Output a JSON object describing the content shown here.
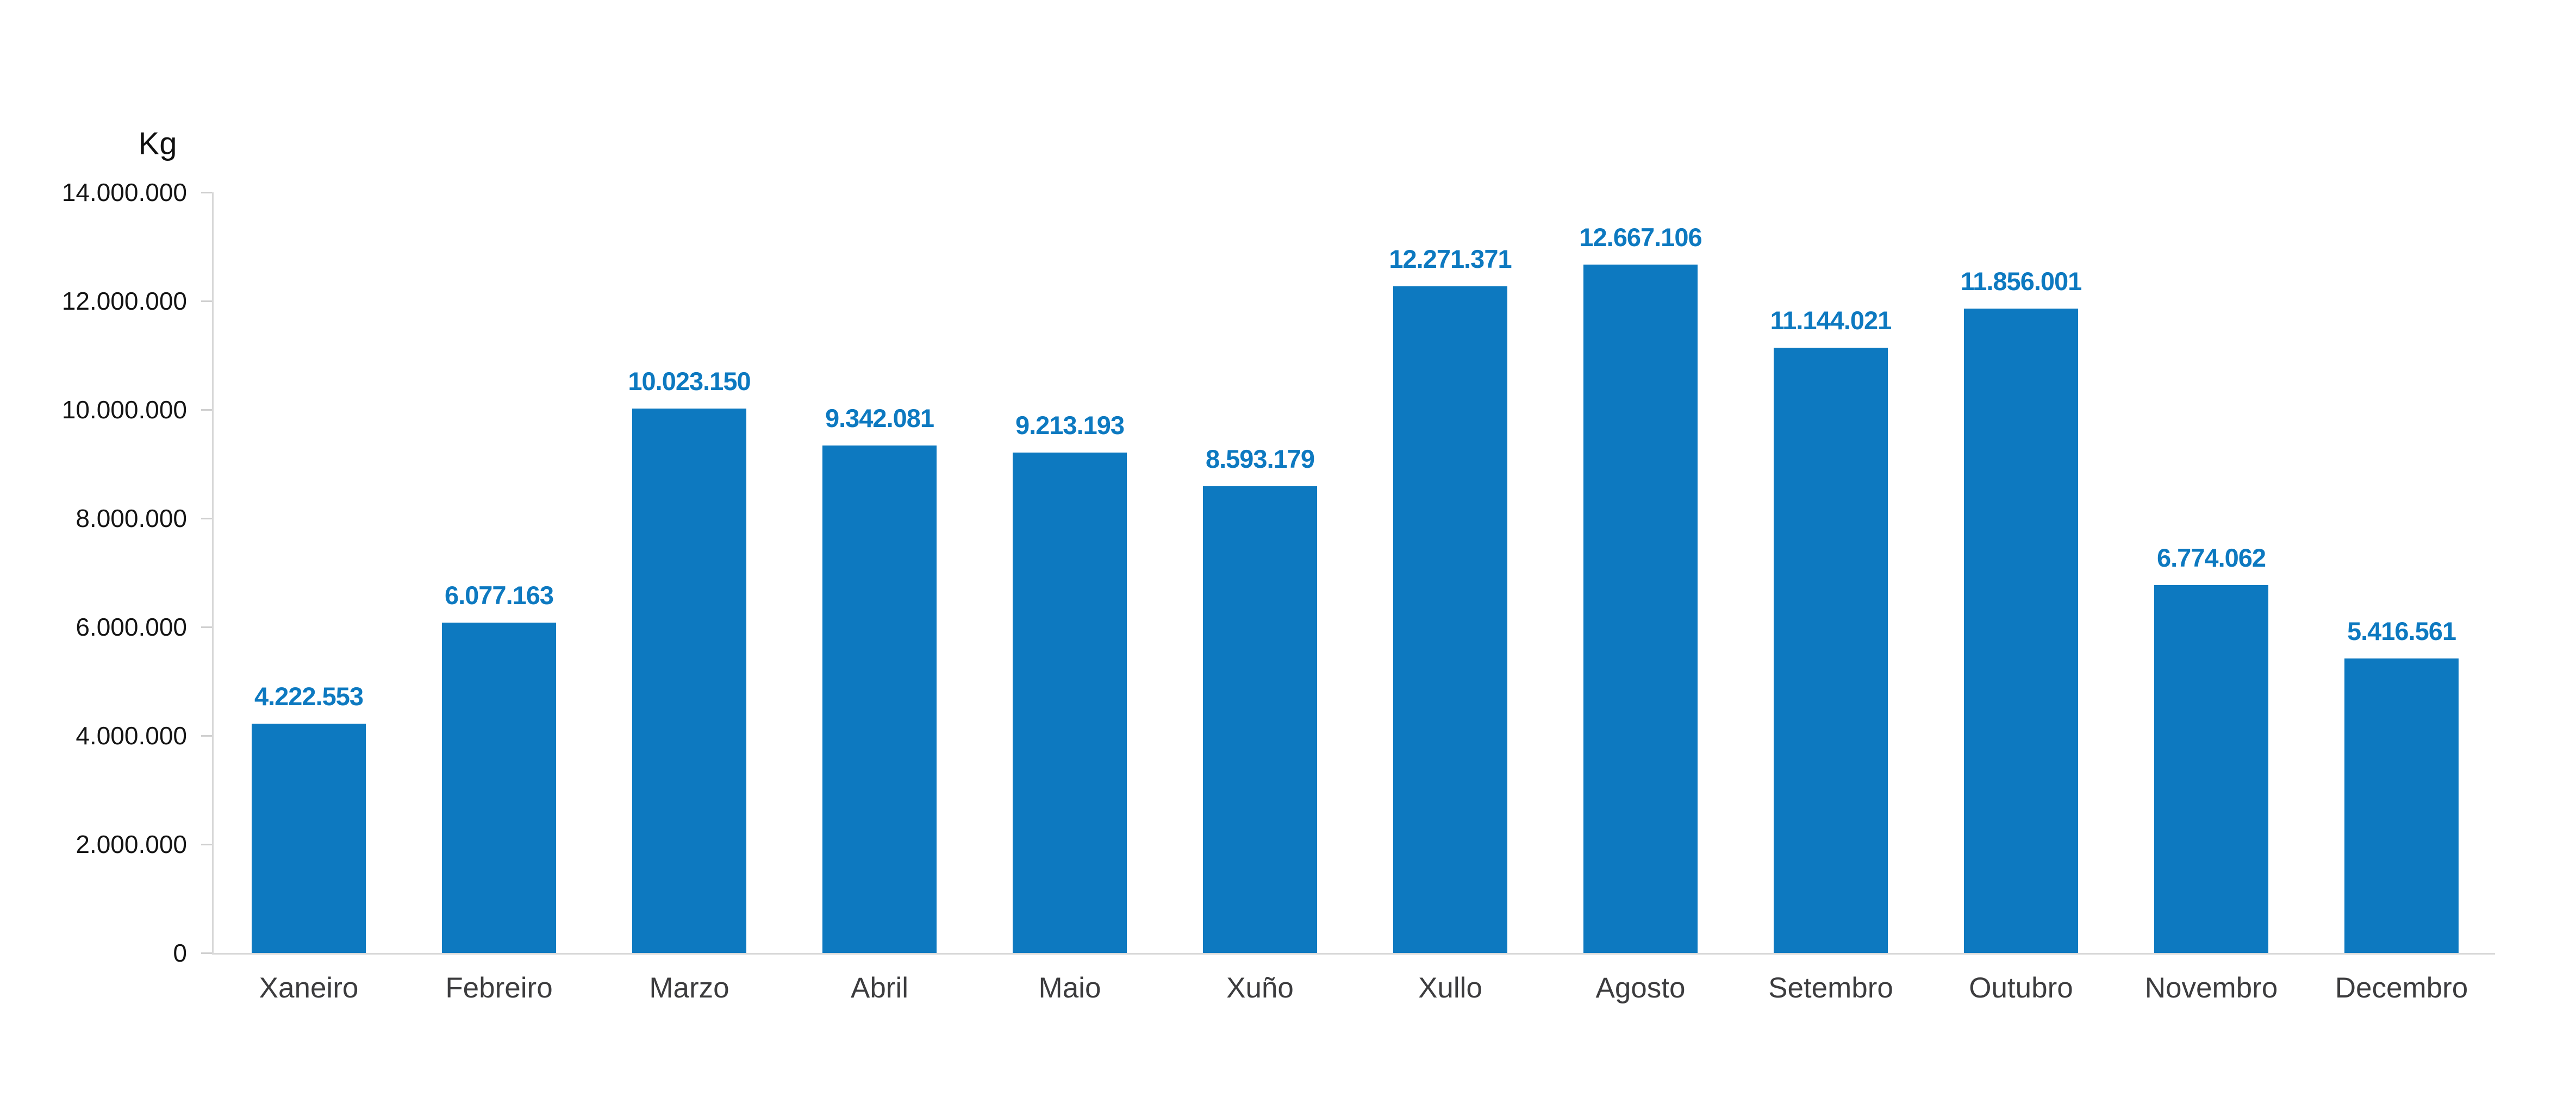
{
  "chart": {
    "y_axis_title": "Kg"
  },
  "chart_data": {
    "type": "bar",
    "title": "",
    "xlabel": "",
    "ylabel": "Kg",
    "categories": [
      "Xaneiro",
      "Febreiro",
      "Marzo",
      "Abril",
      "Maio",
      "Xuño",
      "Xullo",
      "Agosto",
      "Setembro",
      "Outubro",
      "Novembro",
      "Decembro"
    ],
    "values": [
      4222553,
      6077163,
      10023150,
      9342081,
      9213193,
      8593179,
      12271371,
      12667106,
      11144021,
      11856001,
      6774062,
      5416561
    ],
    "data_labels": [
      "4.222.553",
      "6.077.163",
      "10.023.150",
      "9.342.081",
      "9.213.193",
      "8.593.179",
      "12.271.371",
      "12.667.106",
      "11.144.021",
      "11.856.001",
      "6.774.062",
      "5.416.561"
    ],
    "ylim": [
      0,
      14000000
    ],
    "y_tick_step": 2000000,
    "y_tick_labels": [
      "0",
      "2.000.000",
      "4.000.000",
      "6.000.000",
      "8.000.000",
      "10.000.000",
      "12.000.000",
      "14.000.000"
    ],
    "grid": false,
    "legend": "none",
    "colors": {
      "bar": "#0d79c0",
      "data_label": "#0d79c0",
      "y_tick_text": "#141414",
      "x_tick_text": "#3c3c3e",
      "axis_line": "#d8d8d8",
      "background": "#ffffff"
    }
  }
}
